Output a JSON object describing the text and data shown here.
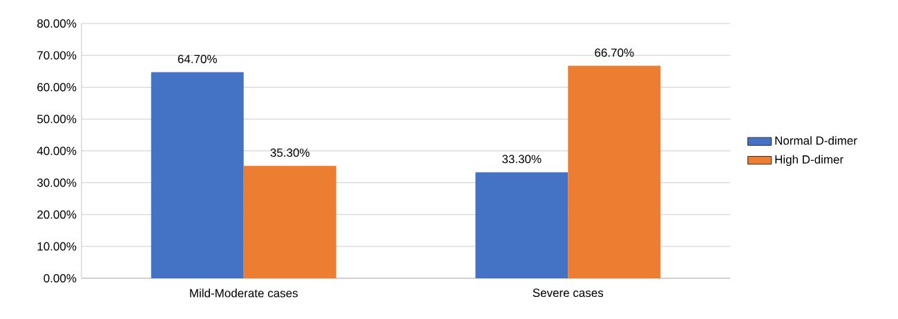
{
  "chart_data": {
    "type": "bar",
    "categories": [
      "Mild-Moderate cases",
      "Severe cases"
    ],
    "series": [
      {
        "name": "Normal D-dimer",
        "color": "#4472c4",
        "values": [
          64.7,
          33.3
        ],
        "value_labels": [
          "64.70%",
          "33.30%"
        ]
      },
      {
        "name": "High D-dimer",
        "color": "#ed7d31",
        "values": [
          35.3,
          66.7
        ],
        "value_labels": [
          "35.30%",
          "66.70%"
        ]
      }
    ],
    "ylim": [
      0,
      80
    ],
    "yticks": [
      {
        "value": 0,
        "label": "0.00%"
      },
      {
        "value": 10,
        "label": "10.00%"
      },
      {
        "value": 20,
        "label": "20.00%"
      },
      {
        "value": 30,
        "label": "30.00%"
      },
      {
        "value": 40,
        "label": "40.00%"
      },
      {
        "value": 50,
        "label": "50.00%"
      },
      {
        "value": 60,
        "label": "60.00%"
      },
      {
        "value": 70,
        "label": "70.00%"
      },
      {
        "value": 80,
        "label": "80.00%"
      }
    ],
    "grid": "y",
    "legend": "right"
  }
}
